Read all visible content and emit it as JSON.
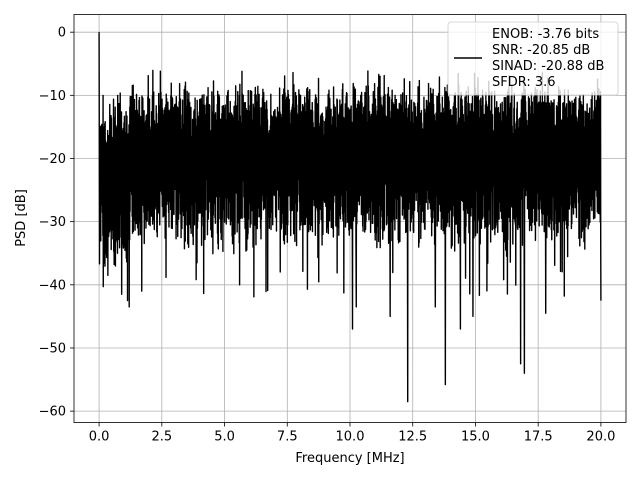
{
  "chart_data": {
    "type": "line",
    "xlabel": "Frequency [MHz]",
    "ylabel": "PSD [dB]",
    "xlim": [
      -1.0,
      21.0
    ],
    "ylim": [
      -61.8,
      2.8
    ],
    "x_ticks": [
      0.0,
      2.5,
      5.0,
      7.5,
      10.0,
      12.5,
      15.0,
      17.5,
      20.0
    ],
    "x_tick_labels": [
      "0.0",
      "2.5",
      "5.0",
      "7.5",
      "10.0",
      "12.5",
      "15.0",
      "17.5",
      "20.0"
    ],
    "y_ticks": [
      0,
      -10,
      -20,
      -30,
      -40,
      -50,
      -60
    ],
    "y_tick_labels": [
      "0",
      "−10",
      "−20",
      "−30",
      "−40",
      "−50",
      "−60"
    ],
    "grid": true,
    "legend_position": "top-right",
    "legend_lines": [
      "ENOB: -3.76 bits",
      "SNR: -20.85 dB",
      "SINAD: -20.88 dB",
      "SFDR: 3.6"
    ],
    "series": [
      {
        "color": "#000000",
        "x_range": [
          0.0,
          20.0
        ],
        "notable_points": [
          {
            "x": 0.0,
            "y": 0.0
          },
          {
            "x": 0.05,
            "y": -31.5
          },
          {
            "x": 0.35,
            "y": -38.5
          },
          {
            "x": 0.9,
            "y": -41.5
          },
          {
            "x": 1.2,
            "y": -43.5
          },
          {
            "x": 1.7,
            "y": -41.0
          },
          {
            "x": 5.6,
            "y": -40.0
          },
          {
            "x": 10.1,
            "y": -47.0
          },
          {
            "x": 10.25,
            "y": -43.5
          },
          {
            "x": 11.6,
            "y": -45.0
          },
          {
            "x": 12.3,
            "y": -58.5
          },
          {
            "x": 13.4,
            "y": -43.5
          },
          {
            "x": 13.8,
            "y": -55.8
          },
          {
            "x": 14.4,
            "y": -47.0
          },
          {
            "x": 14.9,
            "y": -45.0
          },
          {
            "x": 16.8,
            "y": -52.5
          },
          {
            "x": 16.95,
            "y": -54.0
          },
          {
            "x": 17.8,
            "y": -44.5
          },
          {
            "x": 20.0,
            "y": -42.5
          }
        ],
        "typical_band": {
          "upper": -12.0,
          "lower": -30.0,
          "peak_max": -6.0
        }
      }
    ]
  }
}
